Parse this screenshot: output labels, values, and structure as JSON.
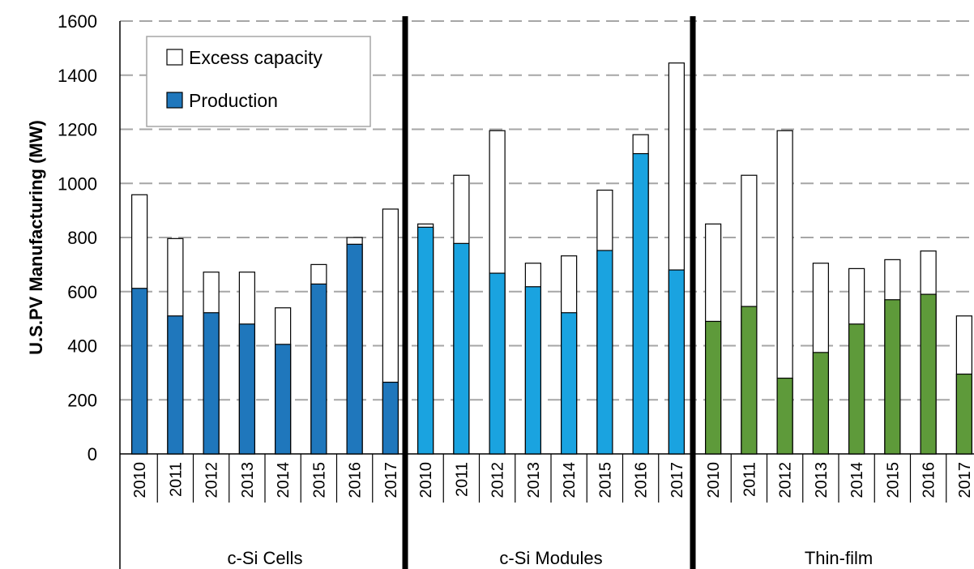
{
  "chart_data": {
    "type": "bar",
    "stacked": true,
    "ylabel": "U.S.PV Manufacturing (MW)",
    "ylim": [
      0,
      1600
    ],
    "yticks": [
      0,
      200,
      400,
      600,
      800,
      1000,
      1200,
      1400,
      1600
    ],
    "grid": true,
    "legend_position": "top-left",
    "legend": [
      {
        "label": "Excess capacity",
        "swatch": "#ffffff"
      },
      {
        "label": "Production",
        "swatch": "#1f77bc"
      }
    ],
    "groups": [
      {
        "label": "c-Si Cells",
        "color": "#1f77bc",
        "years": [
          "2010",
          "2011",
          "2012",
          "2013",
          "2014",
          "2015",
          "2016",
          "2017"
        ],
        "production": [
          612,
          510,
          522,
          480,
          405,
          628,
          775,
          265
        ],
        "total": [
          958,
          796,
          672,
          672,
          540,
          700,
          800,
          905
        ]
      },
      {
        "label": "c-Si Modules",
        "color": "#1aa3e0",
        "years": [
          "2010",
          "2011",
          "2012",
          "2013",
          "2014",
          "2015",
          "2016",
          "2017"
        ],
        "production": [
          838,
          778,
          668,
          618,
          522,
          752,
          1110,
          680
        ],
        "total": [
          850,
          1030,
          1195,
          705,
          732,
          975,
          1180,
          1445
        ]
      },
      {
        "label": "Thin-film",
        "color": "#5e9a3a",
        "years": [
          "2010",
          "2011",
          "2012",
          "2013",
          "2014",
          "2015",
          "2016",
          "2017"
        ],
        "production": [
          490,
          545,
          280,
          375,
          480,
          570,
          590,
          295
        ],
        "total": [
          850,
          1030,
          1195,
          705,
          685,
          718,
          750,
          510
        ]
      }
    ]
  }
}
